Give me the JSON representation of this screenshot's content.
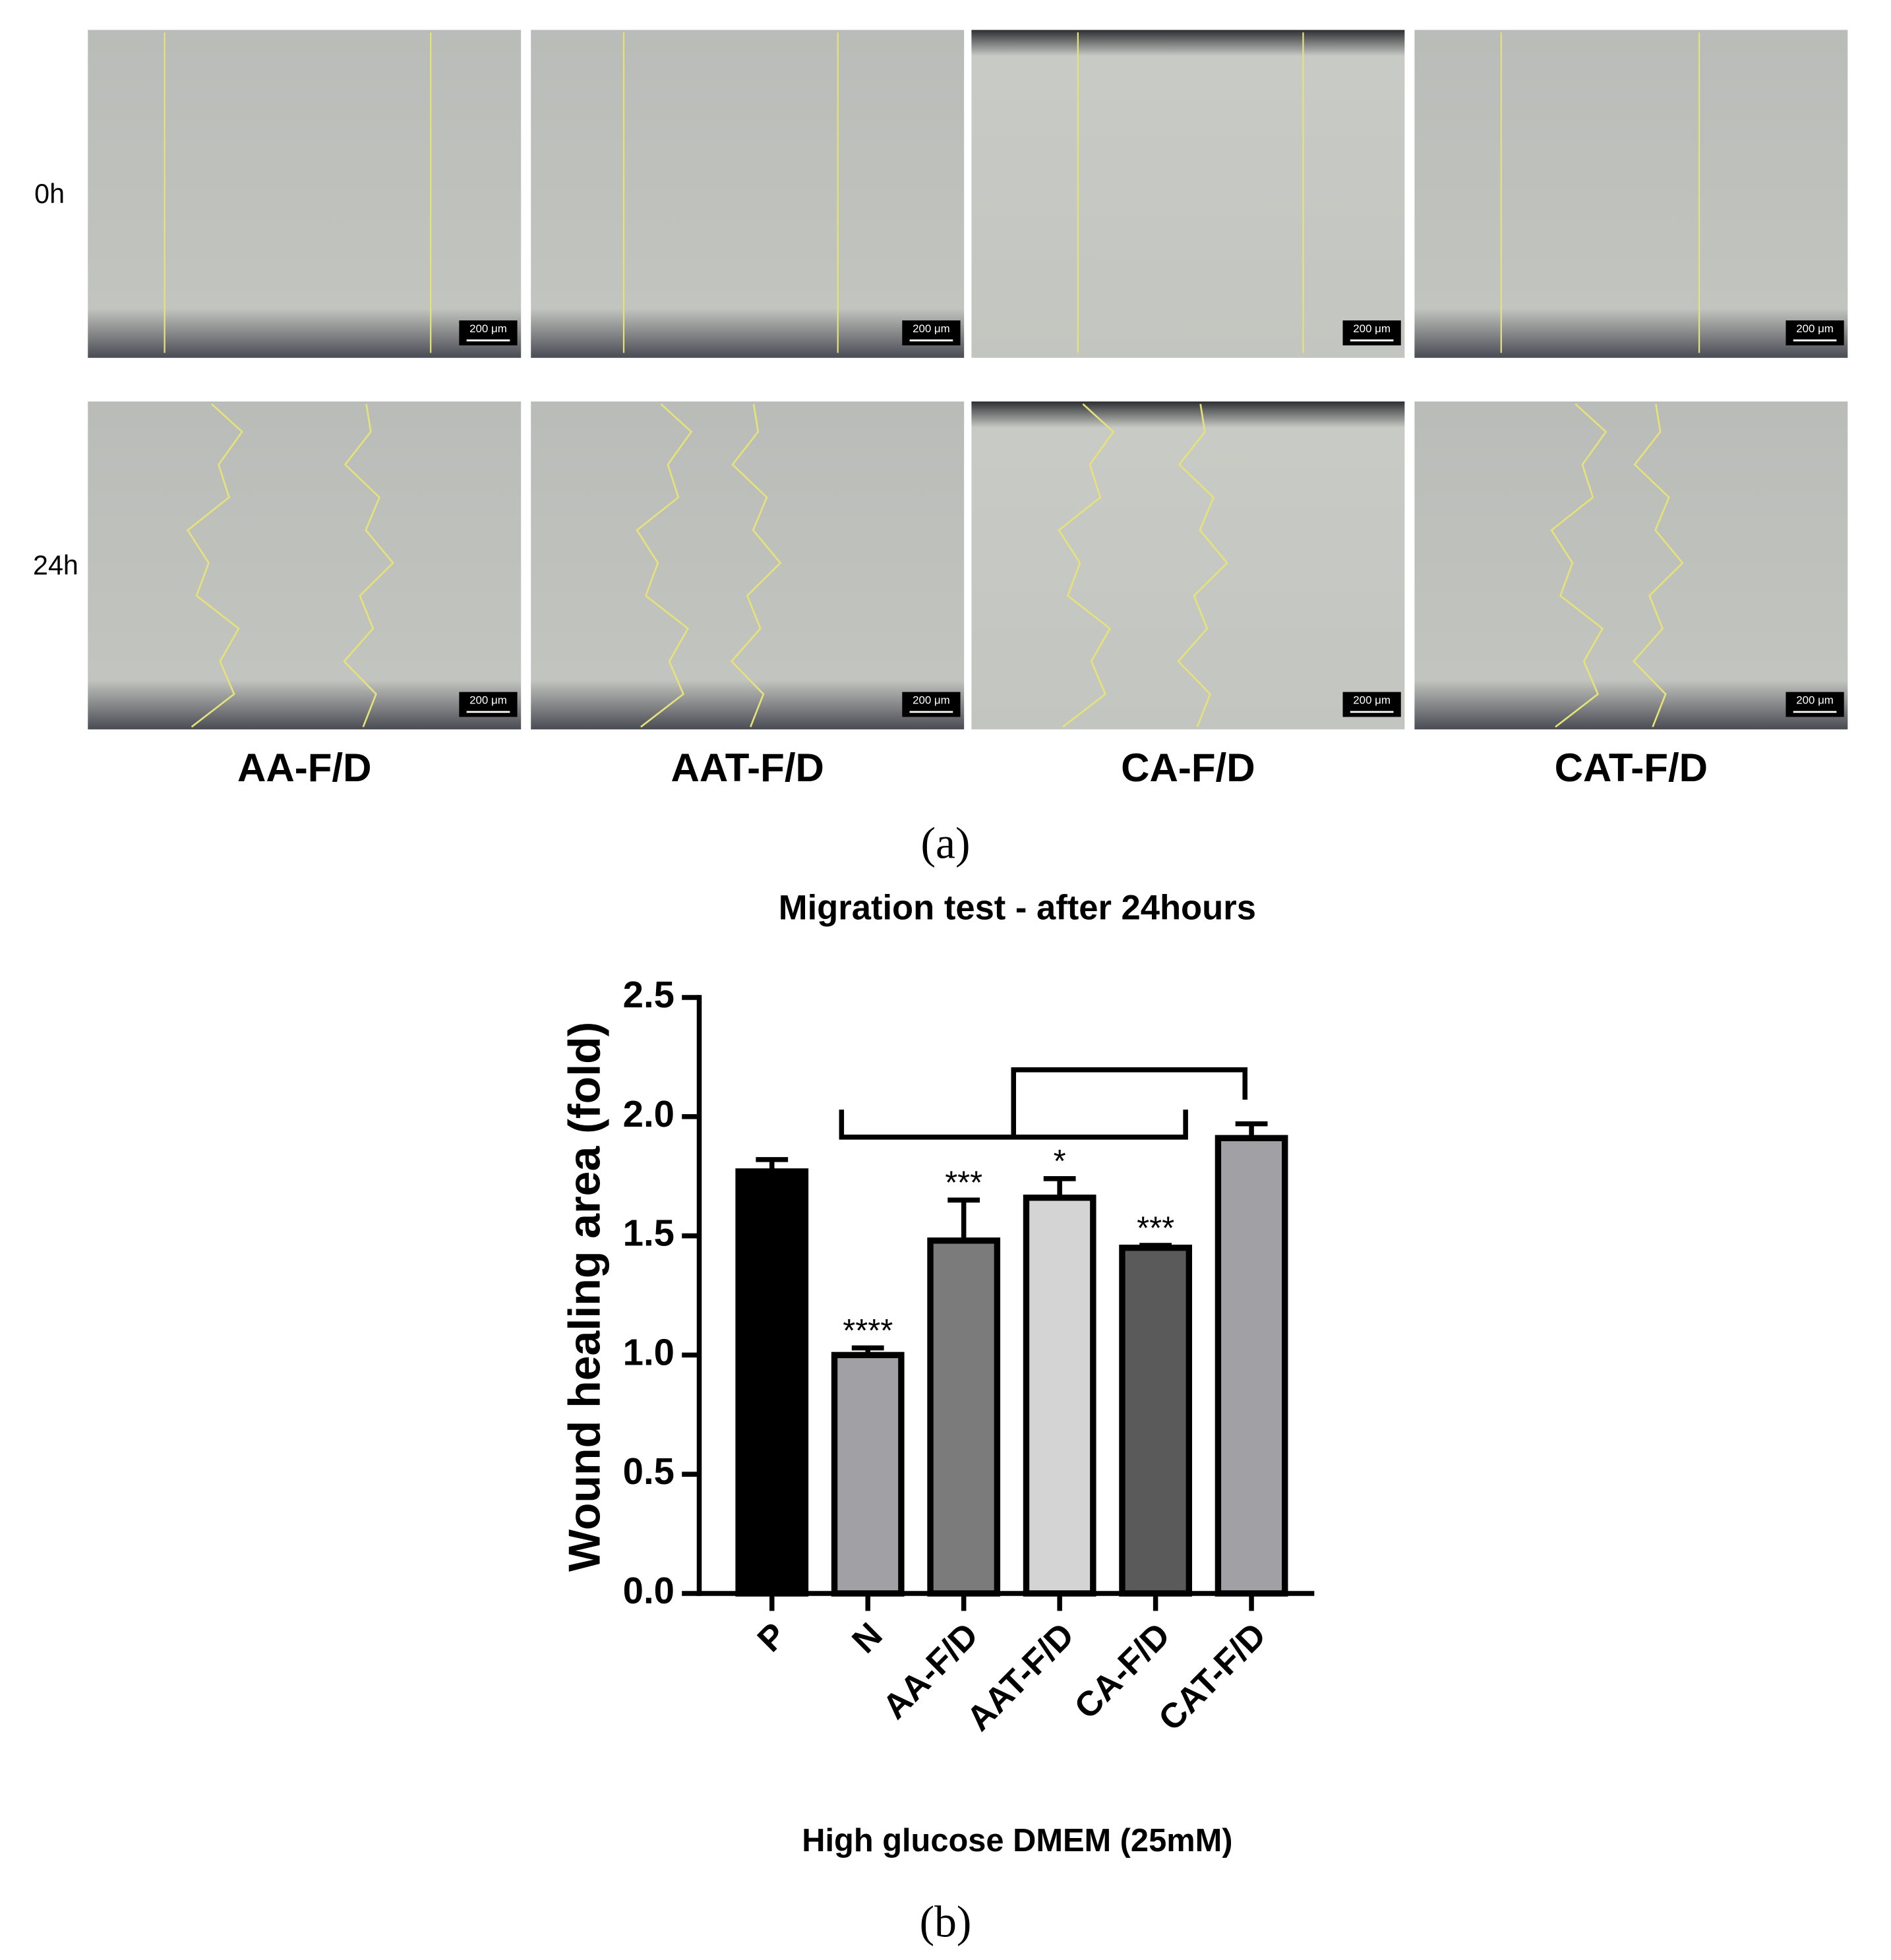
{
  "figure": {
    "row_labels": [
      "0h",
      "24h"
    ],
    "column_labels": [
      "AA-F/D",
      "AAT-F/D",
      "CA-F/D",
      "CAT-F/D"
    ],
    "scale_bar": "200 μm",
    "panel_labels": [
      "(a)",
      "(b)"
    ]
  },
  "chart_data": {
    "type": "bar",
    "title": "Migration test - after 24hours",
    "x_label": "High glucose DMEM (25mM)",
    "y_label": "Wound healing area (fold)",
    "categories": [
      "P",
      "N",
      "AA-F/D",
      "AAT-F/D",
      "CA-F/D",
      "CAT-F/D"
    ],
    "values": [
      1.77,
      1.0,
      1.48,
      1.66,
      1.45,
      1.91
    ],
    "errors": [
      0.05,
      0.03,
      0.17,
      0.08,
      0.01,
      0.06
    ],
    "colors": [
      "#000000",
      "#a0a0a5",
      "#7b7b7b",
      "#d4d4d4",
      "#5a5a5a",
      "#a0a0a5"
    ],
    "significance": [
      null,
      "****",
      "***",
      "*",
      "***",
      null
    ],
    "ylim": [
      0,
      2.5
    ],
    "yticks": [
      {
        "value": 0,
        "label": "0.0"
      },
      {
        "value": 0.5,
        "label": "0.5"
      },
      {
        "value": 1,
        "label": "1.0"
      },
      {
        "value": 1.5,
        "label": "1.5"
      },
      {
        "value": 2,
        "label": "2.0"
      },
      {
        "value": 2.5,
        "label": "2.5"
      }
    ]
  }
}
